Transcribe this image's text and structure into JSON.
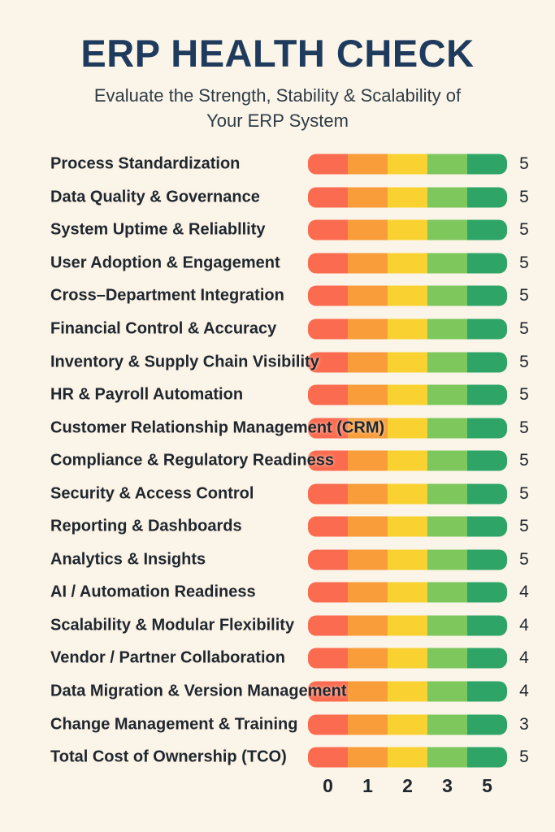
{
  "chart_data": {
    "type": "bar",
    "title": "ERP HEALTH CHECK",
    "subtitle_lines": [
      "Evaluate the Strength, Stability & Scalability of",
      "Your ERP System"
    ],
    "subtitle": "Evaluate the Strength, Stability & Scalability of Your ERP System",
    "categories": [
      "Process Standardization",
      "Data Quality & Governance",
      "System Uptime & Reliabllity",
      "User Adoption & Engagement",
      "Cross–Department Integration",
      "Financial Control & Accuracy",
      "Inventory & Supply Chain Visibility",
      "HR & Payroll Automation",
      "Customer Relationship Management (CRM)",
      "Compliance & Regulatory Readiness",
      "Security & Access Control",
      "Reporting & Dashboards",
      "Analytics & Insights",
      "AI / Automation Readiness",
      "Scalability & Modular Flexibility",
      "Vendor / Partner Collaboration",
      "Data Migration & Version Management",
      "Change Management & Training",
      "Total Cost of Ownership (TCO)"
    ],
    "values": [
      5,
      5,
      5,
      5,
      5,
      5,
      5,
      5,
      5,
      5,
      5,
      5,
      5,
      4,
      4,
      4,
      4,
      3,
      5
    ],
    "x_ticks": [
      "0",
      "1",
      "2",
      "3",
      "5"
    ],
    "xlim": [
      0,
      5
    ],
    "legend": "none",
    "grid": "off",
    "bar_style": "identical 5-segment red-to-green scale bar per row; numeric rating shown at right",
    "segment_colors": [
      "#FB6B50",
      "#F99D3B",
      "#F9D232",
      "#7DC75D",
      "#2EA567"
    ],
    "colors": {
      "background": "#FBF4E8",
      "title": "#1E3A5C",
      "subtitle": "#2E3B45",
      "label": "#1F262E"
    }
  }
}
